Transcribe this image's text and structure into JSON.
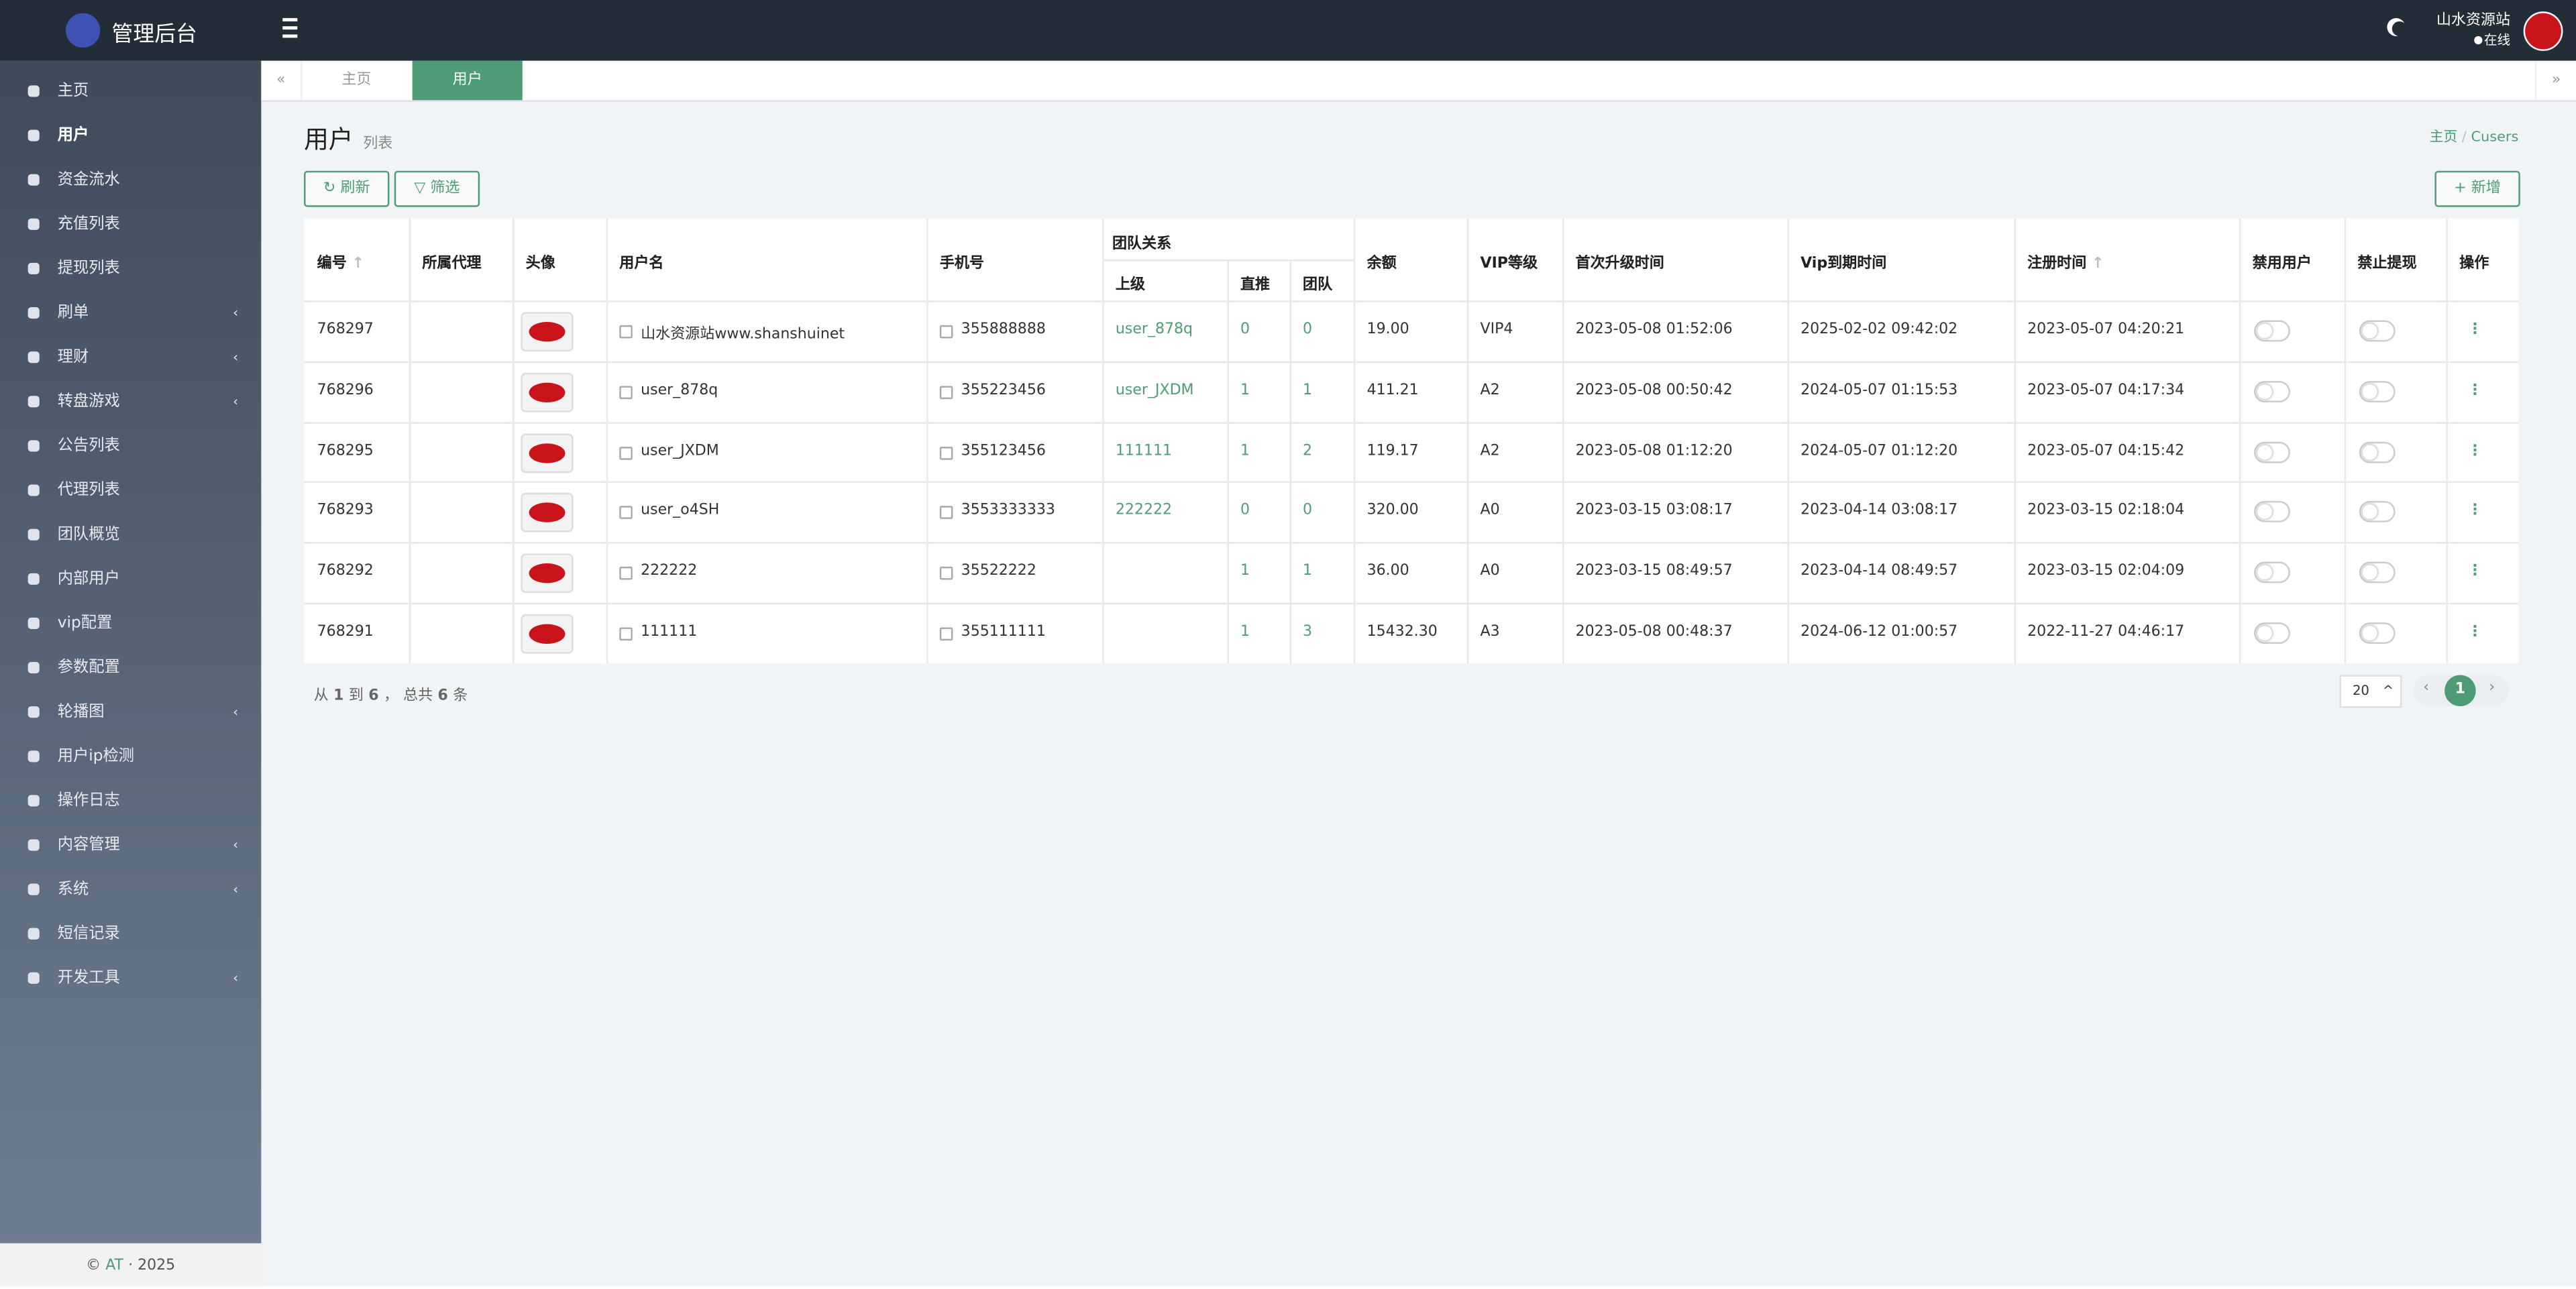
{
  "header": {
    "brand": "管理后台",
    "user": "山水资源站",
    "status": "在线"
  },
  "sidebar": {
    "menu": [
      {
        "label": "主页"
      },
      {
        "label": "用户",
        "active": true
      },
      {
        "label": "资金流水"
      },
      {
        "label": "充值列表"
      },
      {
        "label": "提现列表"
      },
      {
        "label": "刷单",
        "submenu": true
      },
      {
        "label": "理财",
        "submenu": true
      },
      {
        "label": "转盘游戏",
        "submenu": true
      },
      {
        "label": "公告列表"
      },
      {
        "label": "代理列表"
      },
      {
        "label": "团队概览"
      },
      {
        "label": "内部用户"
      },
      {
        "label": "vip配置"
      },
      {
        "label": "参数配置"
      },
      {
        "label": "轮播图",
        "submenu": true
      },
      {
        "label": "用户ip检测"
      },
      {
        "label": "操作日志"
      },
      {
        "label": "内容管理",
        "submenu": true
      },
      {
        "label": "系统",
        "submenu": true
      },
      {
        "label": "短信记录"
      },
      {
        "label": "开发工具",
        "submenu": true
      }
    ],
    "footer": {
      "prefix": "©",
      "link": "AT",
      "suffix": "· 2025"
    }
  },
  "tabs": [
    "主页",
    "用户"
  ],
  "page": {
    "title": "用户",
    "subtitle": "列表",
    "breadcrumb": [
      "主页",
      "Cusers"
    ]
  },
  "toolbar": {
    "refresh": "刷新",
    "filter": "筛选",
    "add": "新增"
  },
  "table": {
    "headers": {
      "id": "编号",
      "agent": "所属代理",
      "avatar": "头像",
      "username": "用户名",
      "phone": "手机号",
      "team": "团队关系",
      "parent": "上级",
      "direct": "直推",
      "team_count": "团队",
      "balance": "余额",
      "vip": "VIP等级",
      "upgrade": "首次升级时间",
      "expire": "Vip到期时间",
      "register": "注册时间",
      "ban_user": "禁用用户",
      "ban_withdraw": "禁止提现",
      "action": "操作"
    },
    "rows": [
      {
        "id": "768297",
        "username": "山水资源站www.shanshuinet",
        "phone": "355888888",
        "parent": "user_878q",
        "direct": "0",
        "team_count": "0",
        "balance": "19.00",
        "vip": "VIP4",
        "upgrade": "2023-05-08 01:52:06",
        "expire": "2025-02-02 09:42:02",
        "register": "2023-05-07 04:20:21"
      },
      {
        "id": "768296",
        "username": "user_878q",
        "phone": "355223456",
        "parent": "user_JXDM",
        "direct": "1",
        "team_count": "1",
        "balance": "411.21",
        "vip": "A2",
        "upgrade": "2023-05-08 00:50:42",
        "expire": "2024-05-07 01:15:53",
        "register": "2023-05-07 04:17:34"
      },
      {
        "id": "768295",
        "username": "user_JXDM",
        "phone": "355123456",
        "parent": "111111",
        "direct": "1",
        "team_count": "2",
        "balance": "119.17",
        "vip": "A2",
        "upgrade": "2023-05-08 01:12:20",
        "expire": "2024-05-07 01:12:20",
        "register": "2023-05-07 04:15:42"
      },
      {
        "id": "768293",
        "username": "user_o4SH",
        "phone": "3553333333",
        "parent": "222222",
        "direct": "0",
        "team_count": "0",
        "balance": "320.00",
        "vip": "A0",
        "upgrade": "2023-03-15 03:08:17",
        "expire": "2023-04-14 03:08:17",
        "register": "2023-03-15 02:18:04"
      },
      {
        "id": "768292",
        "username": "222222",
        "phone": "35522222",
        "direct": "1",
        "team_count": "1",
        "balance": "36.00",
        "vip": "A0",
        "upgrade": "2023-03-15 08:49:57",
        "expire": "2023-04-14 08:49:57",
        "register": "2023-03-15 02:04:09"
      },
      {
        "id": "768291",
        "username": "111111",
        "phone": "355111111",
        "direct": "1",
        "team_count": "3",
        "balance": "15432.30",
        "vip": "A3",
        "upgrade": "2023-05-08 00:48:37",
        "expire": "2024-06-12 01:00:57",
        "register": "2022-11-27 04:46:17"
      }
    ]
  },
  "pagination": {
    "summary": [
      "从",
      "1",
      "到",
      "6",
      "，  总共",
      "6",
      "条"
    ],
    "page_size": "20",
    "current": "1"
  }
}
